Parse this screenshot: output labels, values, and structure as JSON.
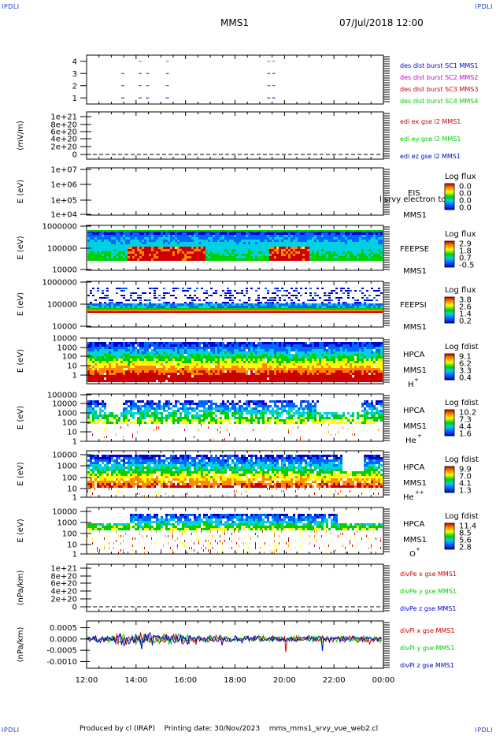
{
  "header": {
    "corner_label": "IPDLI",
    "mission": "MMS1",
    "datetime": "07/Jul/2018 12:00"
  },
  "footer": {
    "produced_by": "Produced by cl (IRAP)",
    "printing_date": "Printing date: 30/Nov/2023",
    "script": "mms_mms1_srvy_vue_web2.cl"
  },
  "time_axis": {
    "ticks": [
      "12:00",
      "14:00",
      "16:00",
      "18:00",
      "20:00",
      "22:00",
      "00:00"
    ],
    "start_hour": 12,
    "end_hour": 24
  },
  "colors": {
    "red": "#cc0000",
    "green": "#00cc00",
    "blue": "#0000cc",
    "magenta": "#cc00cc",
    "axis": "#000000"
  },
  "chart_data": [
    {
      "type": "scatter",
      "id": "burst",
      "yticks": [
        "1",
        "2",
        "3",
        "4"
      ],
      "ylim": [
        0.5,
        4.5
      ],
      "series": [
        {
          "name": "des dist burst SC1 MMS1",
          "color": "#0000cc",
          "y": 1,
          "x": [
            13.4,
            14.1,
            14.4,
            15.2,
            19.3,
            19.5
          ]
        },
        {
          "name": "des dist burst SC2 MMS2",
          "color": "#cc00cc",
          "y": 2,
          "x": [
            13.4,
            14.1,
            14.4,
            15.2,
            19.3,
            19.5
          ]
        },
        {
          "name": "des dist burst SC3 MMS3",
          "color": "#cc0000",
          "y": 3,
          "x": [
            13.4,
            14.1,
            14.4,
            15.2,
            19.3,
            19.5
          ]
        },
        {
          "name": "des dist burst SC4 MMS4",
          "color": "#00cc00",
          "y": 4,
          "x": [
            14.1,
            15.2,
            19.3,
            19.5
          ]
        }
      ]
    },
    {
      "type": "line",
      "id": "edi",
      "ylabel": "(mV/m)",
      "yticks": [
        "1e+21",
        "8e+20",
        "6e+20",
        "4e+20",
        "2e+20",
        "0"
      ],
      "series": [
        {
          "name": "edi ex gse l2 MMS1",
          "color": "#cc0000"
        },
        {
          "name": "edi ey gse l2 MMS1",
          "color": "#00cc00"
        },
        {
          "name": "edi ez gse l2 MMS1",
          "color": "#0000cc"
        }
      ]
    },
    {
      "type": "heatmap",
      "id": "eis",
      "ylabel": "E (eV)",
      "yticks": [
        "1e+07",
        "1e+06",
        "1e+05",
        "1e+04"
      ],
      "instrument": "EIS",
      "overlay": "l srvy electron to",
      "sc": "MMS1",
      "cbar_title": "Log flux",
      "cbar_ticks": [
        "0.0",
        "0.0",
        "0.0",
        "0.0"
      ]
    },
    {
      "type": "heatmap",
      "id": "feepse",
      "ylabel": "E (eV)",
      "yticks": [
        "1000000",
        "100000",
        "10000"
      ],
      "instrument": "FEEPSE",
      "sc": "MMS1",
      "cbar_title": "Log flux",
      "cbar_ticks": [
        "2.9",
        "1.8",
        "0.7",
        "-0.5"
      ]
    },
    {
      "type": "heatmap",
      "id": "feepsi",
      "ylabel": "E (eV)",
      "yticks": [
        "1000000",
        "100000",
        "10000"
      ],
      "instrument": "FEEPSI",
      "sc": "MMS1",
      "cbar_title": "Log flux",
      "cbar_ticks": [
        "3.8",
        "2.6",
        "1.4",
        "0.2"
      ]
    },
    {
      "type": "heatmap",
      "id": "hpca_h",
      "ylabel": "E (eV)",
      "yticks": [
        "10000",
        "1000",
        "100",
        "10",
        "1"
      ],
      "instrument": "HPCA",
      "sc": "MMS1",
      "species": "H",
      "charge": "+",
      "cbar_title": "Log fdist",
      "cbar_ticks": [
        "9.1",
        "6.2",
        "3.3",
        "0.4"
      ]
    },
    {
      "type": "heatmap",
      "id": "hpca_he",
      "ylabel": "E (eV)",
      "yticks": [
        "100000",
        "10000",
        "1000",
        "100",
        "10",
        "1"
      ],
      "instrument": "HPCA",
      "sc": "MMS1",
      "species": "He",
      "charge": "+",
      "cbar_title": "Log fdist",
      "cbar_ticks": [
        "10.2",
        "7.3",
        "4.4",
        "1.6"
      ]
    },
    {
      "type": "heatmap",
      "id": "hpca_he2",
      "ylabel": "E (eV)",
      "yticks": [
        "10000",
        "1000",
        "100",
        "10",
        "1"
      ],
      "instrument": "HPCA",
      "sc": "MMS1",
      "species": "He",
      "charge": "++",
      "cbar_title": "Log fdist",
      "cbar_ticks": [
        "9.9",
        "7.0",
        "4.1",
        "1.3"
      ]
    },
    {
      "type": "heatmap",
      "id": "hpca_o",
      "ylabel": "E (eV)",
      "yticks": [
        "10000",
        "1000",
        "100",
        "10",
        "1"
      ],
      "instrument": "HPCA",
      "sc": "MMS1",
      "species": "O",
      "charge": "+",
      "cbar_title": "Log fdist",
      "cbar_ticks": [
        "11.4",
        "8.5",
        "5.6",
        "2.8"
      ]
    },
    {
      "type": "line",
      "id": "divpe",
      "ylabel": "(nPa/km)",
      "yticks": [
        "1e+21",
        "8e+20",
        "6e+20",
        "4e+20",
        "2e+20",
        "0"
      ],
      "series": [
        {
          "name": "divPe x gse MMS1",
          "color": "#cc0000"
        },
        {
          "name": "divPe y gse MMS1",
          "color": "#00cc00"
        },
        {
          "name": "divPe z gse MMS1",
          "color": "#0000cc"
        }
      ]
    },
    {
      "type": "line",
      "id": "divpi",
      "ylabel": "(nPa/km)",
      "yticks": [
        "0.0005",
        "0.0000",
        "-0.0005",
        "-0.0010"
      ],
      "ylim": [
        -0.0013,
        0.0008
      ],
      "series": [
        {
          "name": "divPi x gse MMS1",
          "color": "#cc0000"
        },
        {
          "name": "divPi y gse MMS1",
          "color": "#00cc00"
        },
        {
          "name": "divPi z gse MMS1",
          "color": "#0000cc"
        }
      ]
    }
  ]
}
